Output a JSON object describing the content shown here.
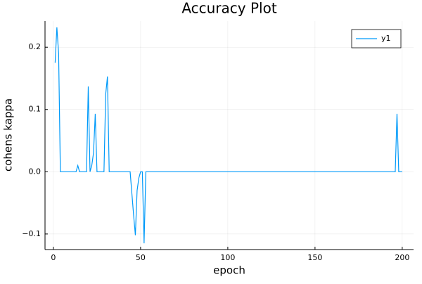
{
  "chart_data": {
    "type": "line",
    "title": "Accuracy Plot",
    "x_label": "epoch",
    "y_label": "cohens kappa",
    "x": [
      1,
      2,
      3,
      4,
      13,
      14,
      15,
      19,
      20,
      21,
      22,
      23,
      24,
      25,
      29,
      30,
      31,
      32,
      44,
      45,
      46,
      47,
      48,
      49,
      50,
      51,
      52,
      53,
      196,
      197,
      198,
      200
    ],
    "series": [
      {
        "name": "y1",
        "color": "#009af9",
        "values": [
          0.175,
          0.232,
          0.19,
          0,
          0,
          0.01,
          0,
          0,
          0.137,
          0,
          0.01,
          0.03,
          0.093,
          0,
          0,
          0.125,
          0.153,
          0,
          0,
          -0.035,
          -0.07,
          -0.102,
          -0.03,
          -0.01,
          0,
          0,
          -0.115,
          0,
          0,
          0.093,
          0,
          0
        ]
      }
    ],
    "xlim": [
      -4.8,
      206.5
    ],
    "ylim": [
      -0.125,
      0.242
    ],
    "xticks": [
      0,
      50,
      100,
      150,
      200
    ],
    "yticks": [
      {
        "value": -0.1,
        "label": "−0.1"
      },
      {
        "value": 0,
        "label": "0.0"
      },
      0.1,
      0.2
    ],
    "grid": true,
    "legend": "top-right"
  }
}
